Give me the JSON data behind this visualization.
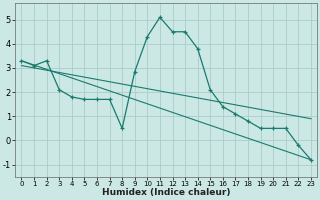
{
  "xlabel": "Humidex (Indice chaleur)",
  "background_color": "#cce8e4",
  "grid_color": "#aacccc",
  "line_color": "#1a7a6e",
  "xlim": [
    -0.5,
    23.5
  ],
  "ylim": [
    -1.5,
    5.7
  ],
  "x_ticks": [
    0,
    1,
    2,
    3,
    4,
    5,
    6,
    7,
    8,
    9,
    10,
    11,
    12,
    13,
    14,
    15,
    16,
    17,
    18,
    19,
    20,
    21,
    22,
    23
  ],
  "y_ticks": [
    -1,
    0,
    1,
    2,
    3,
    4,
    5
  ],
  "series1_x": [
    0,
    1,
    2,
    3,
    4,
    5,
    6,
    7,
    8,
    9,
    10,
    11,
    12,
    13,
    14,
    15,
    16,
    17,
    18,
    19,
    20,
    21,
    22,
    23
  ],
  "series1_y": [
    3.3,
    3.1,
    3.3,
    2.1,
    1.8,
    1.7,
    1.7,
    1.7,
    0.5,
    2.85,
    4.3,
    5.1,
    4.5,
    4.5,
    3.8,
    2.1,
    1.4,
    1.1,
    0.8,
    0.5,
    0.5,
    0.5,
    -0.2,
    -0.8
  ],
  "line2_x": [
    0,
    23
  ],
  "line2_y": [
    3.3,
    -0.8
  ],
  "line3_x": [
    0,
    23
  ],
  "line3_y": [
    3.1,
    0.9
  ]
}
